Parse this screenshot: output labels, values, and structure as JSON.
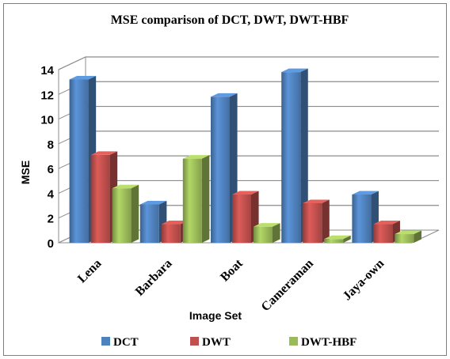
{
  "colors": {
    "background": "#ffffff",
    "border": "#7f7f7f",
    "gridline": "#8c8c8c",
    "wall_fill": "#ffffff",
    "floor_fill": "#ffffff",
    "text": "#000000",
    "DCT": "#4f81bd",
    "DWT": "#c0504d",
    "DWT-HBF": "#9bbb59"
  },
  "chart_data": {
    "type": "bar",
    "style": "3d-clustered-column",
    "title": "MSE comparison of DCT, DWT, DWT-HBF",
    "xlabel": "Image Set",
    "ylabel": "MSE",
    "ylim": [
      0,
      14
    ],
    "yticks": [
      0,
      2,
      4,
      6,
      8,
      10,
      12,
      14
    ],
    "categories": [
      "Lena",
      "Barbara",
      "Boat",
      "Cameraman",
      "Jaya-own"
    ],
    "series": [
      {
        "name": "DCT",
        "color": "#4f81bd",
        "values": [
          13.2,
          3.1,
          11.8,
          13.8,
          3.9
        ]
      },
      {
        "name": "DWT",
        "color": "#c0504d",
        "values": [
          7.1,
          1.5,
          3.9,
          3.2,
          1.5
        ]
      },
      {
        "name": "DWT-HBF",
        "color": "#9bbb59",
        "values": [
          4.4,
          6.8,
          1.3,
          0.3,
          0.7
        ]
      }
    ],
    "grid": true,
    "legend_position": "bottom"
  }
}
